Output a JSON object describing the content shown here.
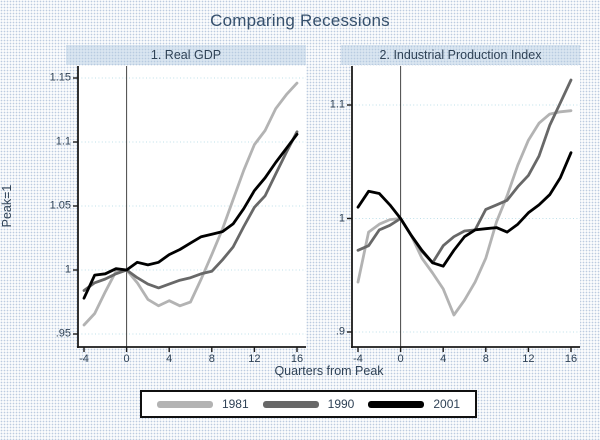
{
  "title": "Comparing Recessions",
  "ylabel": "Peak=1",
  "xlabel": "Quarters from Peak",
  "colors": {
    "text": "#2f4256",
    "plot_background": "#ffffff",
    "gridline": "#bfe0ea",
    "axis": "#1a1a1a",
    "reference_line": "#454545",
    "series_1981": "#b3b3b3",
    "series_1990": "#686868",
    "series_2001": "#000000"
  },
  "legend": [
    {
      "label": "1981",
      "color": "#b3b3b3"
    },
    {
      "label": "1990",
      "color": "#686868"
    },
    {
      "label": "2001",
      "color": "#000000"
    }
  ],
  "chart_data": {
    "type": "line",
    "x": [
      -4,
      -3,
      -2,
      -1,
      0,
      1,
      2,
      3,
      4,
      5,
      6,
      7,
      8,
      9,
      10,
      11,
      12,
      13,
      14,
      15,
      16
    ],
    "xlabel": "Quarters from Peak",
    "ylabel": "Peak=1",
    "x_tick_values": [
      -4,
      0,
      4,
      8,
      12,
      16
    ],
    "x_tick_labels": [
      "-4",
      "0",
      "4",
      "8",
      "12",
      "16"
    ],
    "reference_line_x": 0,
    "grid": "horizontal-dotted",
    "legend_position": "bottom",
    "panels": [
      {
        "title": "1. Real GDP",
        "ylim": [
          0.94,
          1.159
        ],
        "y_tick_values": [
          1.15,
          1.1,
          1.05,
          1.0,
          0.95
        ],
        "y_tick_labels": [
          "1.15",
          "1.1",
          "1.05",
          "1",
          ".95"
        ],
        "series": [
          {
            "name": "1981",
            "color": "#b3b3b3",
            "values": [
              0.957,
              0.966,
              0.983,
              0.999,
              1.0,
              0.99,
              0.977,
              0.972,
              0.976,
              0.972,
              0.975,
              0.993,
              1.012,
              1.032,
              1.055,
              1.078,
              1.098,
              1.109,
              1.126,
              1.137,
              1.146
            ]
          },
          {
            "name": "1990",
            "color": "#686868",
            "values": [
              0.984,
              0.99,
              0.993,
              0.997,
              1.0,
              0.994,
              0.989,
              0.986,
              0.989,
              0.992,
              0.994,
              0.997,
              0.999,
              1.008,
              1.018,
              1.034,
              1.049,
              1.058,
              1.075,
              1.092,
              1.108
            ]
          },
          {
            "name": "2001",
            "color": "#000000",
            "values": [
              0.978,
              0.996,
              0.997,
              1.001,
              1.0,
              1.006,
              1.004,
              1.006,
              1.012,
              1.016,
              1.021,
              1.026,
              1.028,
              1.03,
              1.036,
              1.048,
              1.062,
              1.072,
              1.084,
              1.095,
              1.106
            ]
          }
        ]
      },
      {
        "title": "2. Industrial Production Index",
        "ylim": [
          0.887,
          1.134
        ],
        "y_tick_values": [
          1.1,
          1.0,
          0.9
        ],
        "y_tick_labels": [
          "1.1",
          "1",
          ".9"
        ],
        "series": [
          {
            "name": "1981",
            "color": "#b3b3b3",
            "values": [
              0.944,
              0.988,
              0.995,
              0.999,
              1.0,
              0.985,
              0.965,
              0.952,
              0.938,
              0.915,
              0.928,
              0.944,
              0.965,
              0.997,
              1.02,
              1.047,
              1.069,
              1.084,
              1.092,
              1.094,
              1.095
            ]
          },
          {
            "name": "1990",
            "color": "#686868",
            "values": [
              0.972,
              0.976,
              0.99,
              0.994,
              1.0,
              0.985,
              0.971,
              0.961,
              0.976,
              0.984,
              0.989,
              0.99,
              1.008,
              1.012,
              1.016,
              1.028,
              1.038,
              1.055,
              1.082,
              1.102,
              1.122
            ]
          },
          {
            "name": "2001",
            "color": "#000000",
            "values": [
              1.01,
              1.024,
              1.022,
              1.012,
              1.0,
              0.985,
              0.972,
              0.961,
              0.958,
              0.972,
              0.984,
              0.99,
              0.991,
              0.992,
              0.988,
              0.995,
              1.005,
              1.012,
              1.021,
              1.036,
              1.058
            ]
          }
        ]
      }
    ]
  }
}
